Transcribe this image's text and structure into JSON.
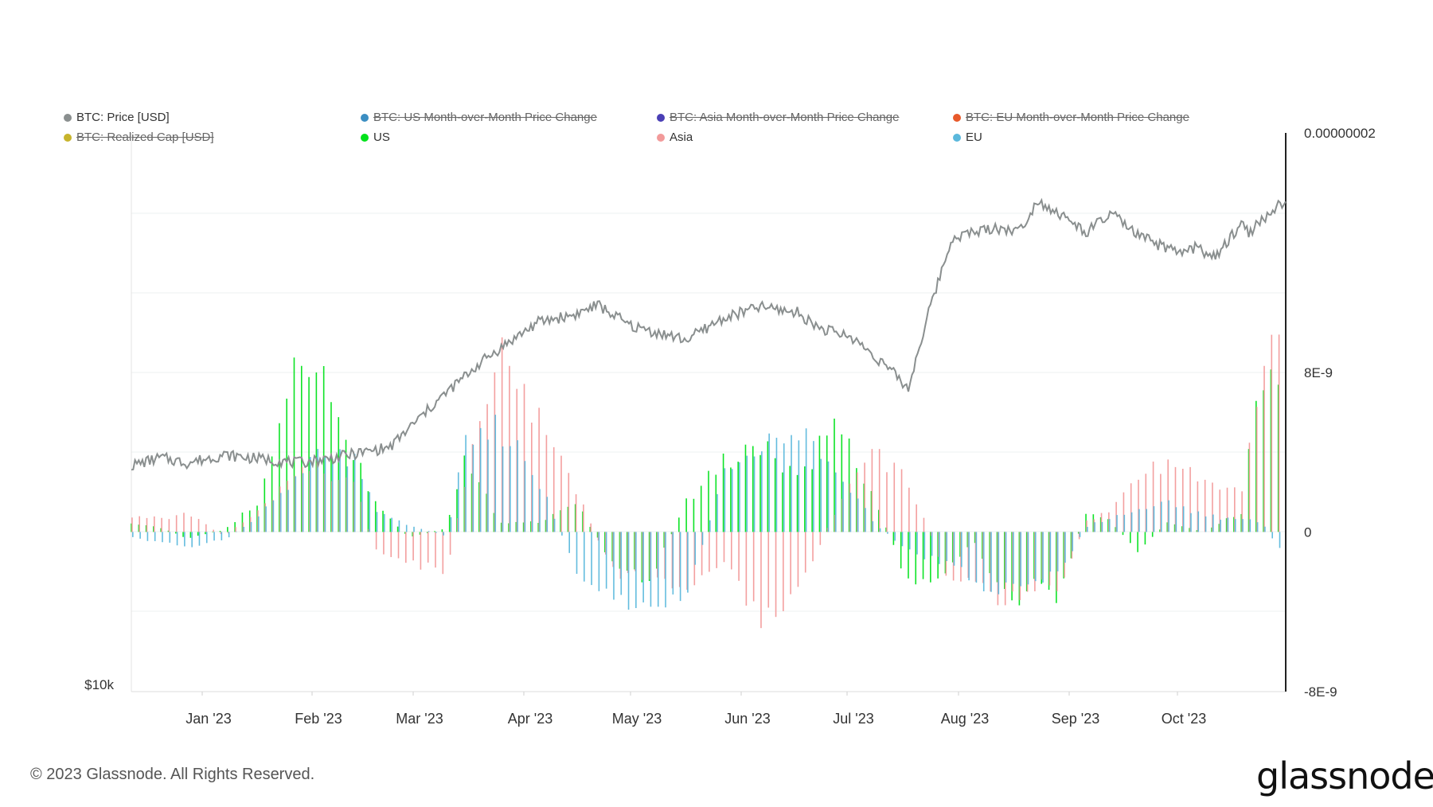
{
  "legend": [
    {
      "label": "BTC: Price [USD]",
      "color": "#8a8f8f",
      "off": false
    },
    {
      "label": "BTC: US Month-over-Month Price Change",
      "color": "#3b8ec2",
      "off": true
    },
    {
      "label": "BTC: Asia Month-over-Month Price Change",
      "color": "#4a3fb5",
      "off": true
    },
    {
      "label": "BTC: EU Month-over-Month Price Change",
      "color": "#e8592a",
      "off": true
    },
    {
      "label": "BTC: Realized Cap [USD]",
      "color": "#c7b42c",
      "off": true
    },
    {
      "label": "US",
      "color": "#00e21a",
      "off": false
    },
    {
      "label": "Asia",
      "color": "#f29a9a",
      "off": false
    },
    {
      "label": "EU",
      "color": "#5bb8dc",
      "off": false
    }
  ],
  "footer": {
    "copyright": "© 2023 Glassnode. All Rights Reserved.",
    "brand": "glassnode"
  },
  "chart_data": {
    "type": "bar",
    "title": "",
    "xlabel": "",
    "ylabel": "",
    "x_ticks": [
      "Jan '23",
      "Feb '23",
      "Mar '23",
      "Apr '23",
      "May '23",
      "Jun '23",
      "Jul '23",
      "Aug '23",
      "Sep '23",
      "Oct '23"
    ],
    "right_axis": {
      "ticks": [
        "0.00000002",
        "8E-9",
        "0",
        "-8E-9"
      ],
      "values": [
        2e-08,
        8e-09,
        0,
        -8e-09
      ],
      "range": [
        -8e-09,
        2e-08
      ]
    },
    "left_axis": {
      "ticks": [
        "$10k"
      ],
      "values": [
        10000
      ],
      "scale": "log"
    },
    "price_series": {
      "name": "BTC: Price [USD]",
      "color": "#8a8f8f",
      "x": [
        0,
        8,
        15,
        25,
        45,
        55,
        70,
        95,
        110,
        120,
        126,
        135,
        150,
        160,
        170,
        180,
        186,
        195,
        205,
        210,
        222,
        233,
        240,
        245,
        250,
        258,
        265,
        272,
        283,
        288,
        293,
        300,
        302,
        310
      ],
      "values": [
        16600,
        16900,
        16700,
        17000,
        16700,
        16900,
        17300,
        21000,
        22900,
        23300,
        23800,
        22700,
        22000,
        23100,
        23700,
        23400,
        22600,
        22100,
        20600,
        19700,
        27700,
        28300,
        28100,
        30100,
        29300,
        28000,
        29200,
        27800,
        26700,
        27100,
        26400,
        28600,
        28000,
        29700
      ]
    },
    "series": [
      {
        "name": "US",
        "color": "#00e21a",
        "x": [
          0,
          8,
          15,
          25,
          35,
          45,
          50,
          60,
          66,
          75,
          85,
          90,
          95,
          100,
          110,
          120,
          130,
          140,
          150,
          160,
          170,
          180,
          190,
          200,
          210,
          220,
          228,
          235,
          240,
          245,
          250,
          258,
          265,
          272,
          280,
          290,
          300,
          305,
          310
        ],
        "values": [
          0.5,
          0.2,
          -0.3,
          0.1,
          1.6,
          9.0,
          8.5,
          4.0,
          1.5,
          -0.3,
          0.2,
          3.5,
          2.0,
          0.5,
          0.5,
          1.5,
          -1.5,
          -2.5,
          1.5,
          3.5,
          4.5,
          2.5,
          5.5,
          2.0,
          -2.5,
          -2.0,
          -0.5,
          -3.0,
          -3.5,
          -2.2,
          -3.3,
          1.0,
          0.5,
          -1.0,
          0.5,
          0.0,
          1.0,
          7.8,
          7.5
        ]
      },
      {
        "name": "Asia",
        "color": "#f29a9a",
        "x": [
          0,
          8,
          15,
          25,
          35,
          45,
          50,
          60,
          66,
          75,
          85,
          90,
          95,
          100,
          110,
          120,
          130,
          140,
          150,
          160,
          170,
          180,
          190,
          200,
          210,
          220,
          228,
          235,
          240,
          245,
          250,
          258,
          265,
          272,
          280,
          290,
          300,
          305,
          310
        ],
        "values": [
          0.8,
          0.7,
          0.9,
          -0.2,
          1.2,
          3.0,
          3.2,
          2.5,
          -1.0,
          -1.5,
          -2.0,
          2.5,
          6.0,
          9.5,
          5.5,
          2.0,
          -2.0,
          -2.5,
          -3.0,
          -1.5,
          -4.5,
          -3.0,
          1.0,
          4.0,
          2.5,
          -2.0,
          -2.5,
          -3.5,
          -3.0,
          -2.5,
          -3.2,
          0.5,
          1.2,
          3.0,
          3.5,
          2.5,
          2.0,
          7.5,
          9.5
        ]
      },
      {
        "name": "EU",
        "color": "#5bb8dc",
        "x": [
          0,
          8,
          15,
          25,
          35,
          45,
          50,
          60,
          66,
          75,
          85,
          90,
          95,
          100,
          110,
          120,
          130,
          140,
          150,
          160,
          170,
          180,
          190,
          200,
          210,
          220,
          228,
          235,
          240,
          245,
          250,
          258,
          265,
          272,
          280,
          290,
          300,
          305,
          310
        ],
        "values": [
          -0.3,
          -0.5,
          -0.7,
          -0.4,
          1.0,
          3.0,
          4.0,
          3.5,
          1.0,
          0.3,
          -0.2,
          4.5,
          5.5,
          5.0,
          2.5,
          -2.0,
          -3.5,
          -4.0,
          -3.0,
          3.0,
          4.5,
          4.8,
          3.5,
          0.5,
          -1.0,
          -1.5,
          -2.5,
          -3.0,
          -2.5,
          -2.5,
          -2.0,
          0.3,
          0.8,
          1.0,
          1.5,
          0.8,
          0.6,
          0.5,
          -0.8
        ]
      }
    ]
  }
}
